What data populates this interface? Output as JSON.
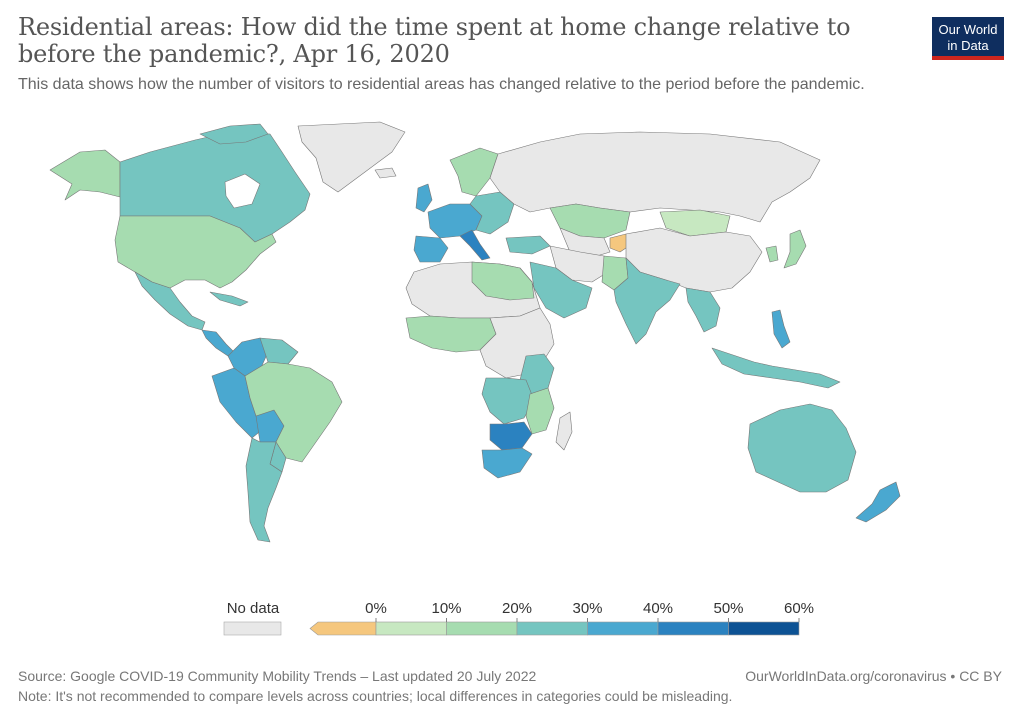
{
  "header": {
    "title": "Residential areas: How did the time spent at home change relative to before the pandemic?, Apr 16, 2020",
    "subtitle": "This data shows how the number of visitors to residential areas has changed relative to the period before the pandemic.",
    "logo_line1": "Our World",
    "logo_line2": "in Data"
  },
  "legend": {
    "no_data_label": "No data",
    "no_data_color": "#e8e8e8",
    "ticks": [
      "0%",
      "10%",
      "20%",
      "30%",
      "40%",
      "50%",
      "60%"
    ],
    "bins": [
      {
        "range": "<0%",
        "color": "#f5c77e"
      },
      {
        "range": "0-10%",
        "color": "#c7e8c1"
      },
      {
        "range": "10-20%",
        "color": "#a6dcb0"
      },
      {
        "range": "20-30%",
        "color": "#75c5c0"
      },
      {
        "range": "30-40%",
        "color": "#4aa8d0"
      },
      {
        "range": "40-50%",
        "color": "#2b82c0"
      },
      {
        "range": "50-60%",
        "color": "#0d5294"
      }
    ]
  },
  "footer": {
    "source": "Source: Google COVID-19 Community Mobility Trends – Last updated 20 July 2022",
    "note": "Note: It's not recommended to compare levels across countries; local differences in categories could be misleading.",
    "credit": "OurWorldInData.org/coronavirus • CC BY"
  }
}
